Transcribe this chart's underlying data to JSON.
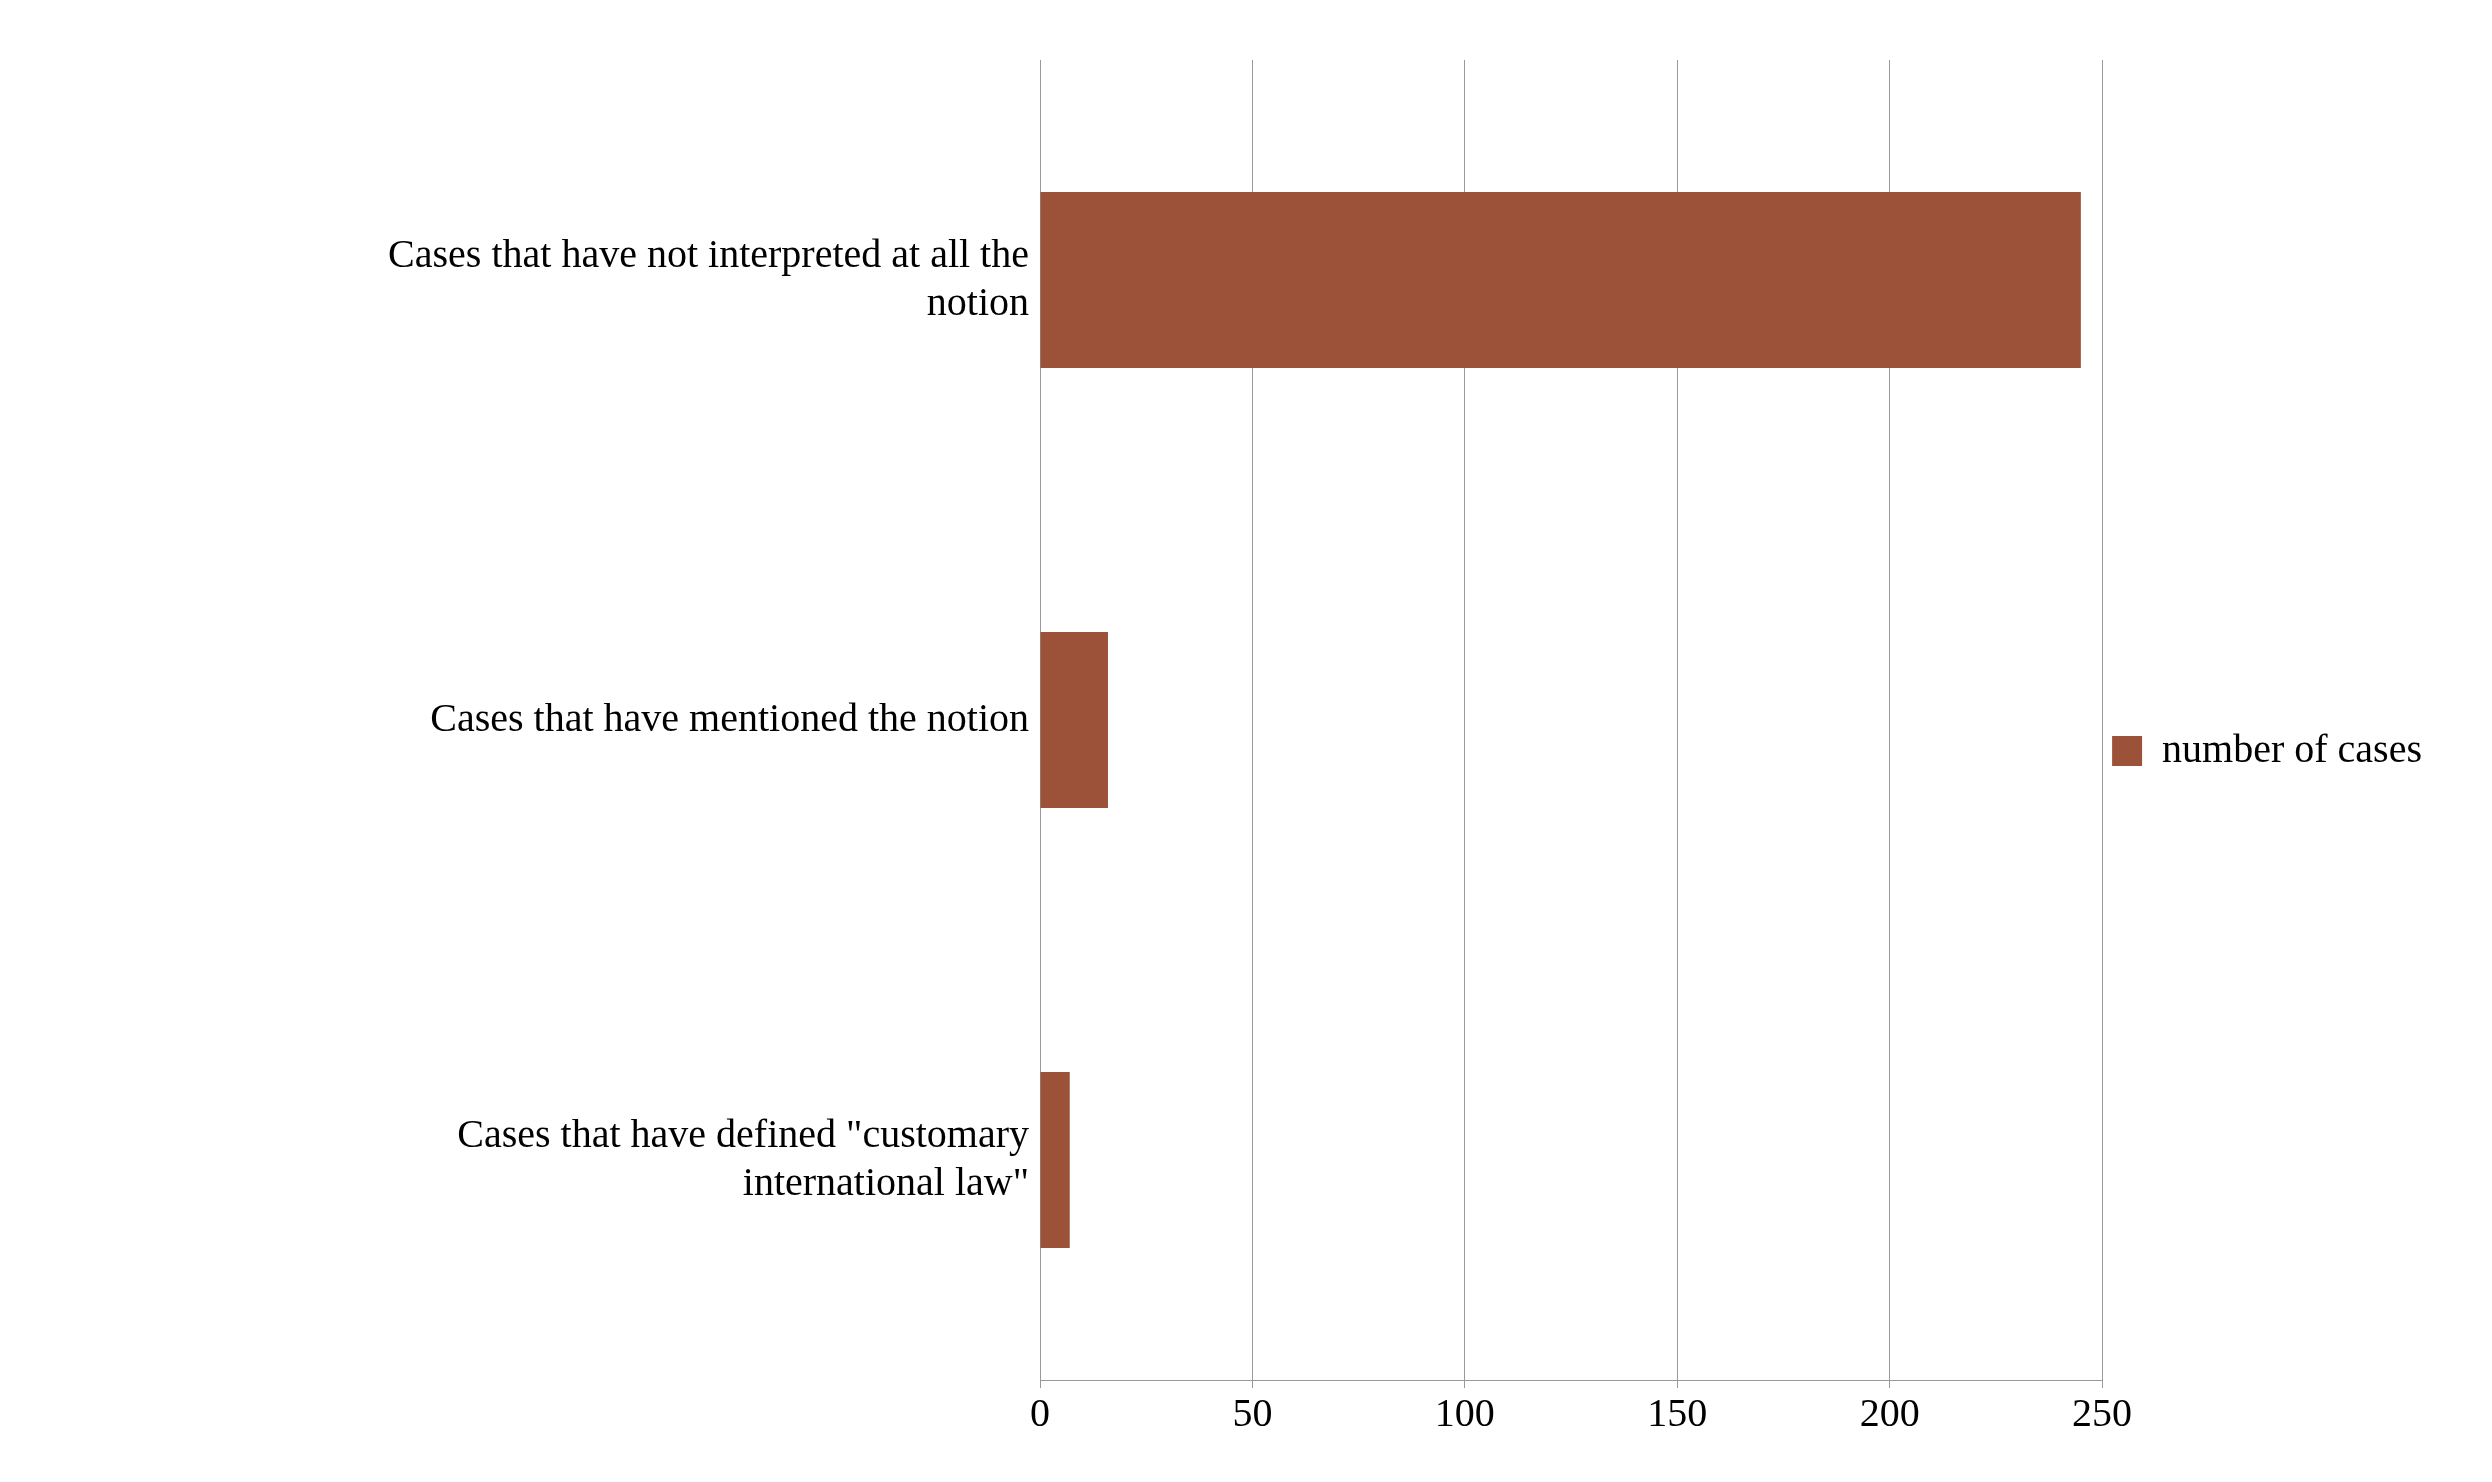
{
  "chart_data": {
    "type": "bar",
    "orientation": "horizontal",
    "categories": [
      "Cases that have not interpreted at all the notion",
      "Cases that have mentioned the notion",
      "Cases that have defined \"customary international law\""
    ],
    "series": [
      {
        "name": "number of cases",
        "color": "#9c5239",
        "values": [
          245,
          16,
          7
        ]
      }
    ],
    "xlim": [
      0,
      250
    ],
    "xticks": [
      0,
      50,
      100,
      150,
      200,
      250
    ],
    "grid": "x",
    "legend": "right"
  }
}
